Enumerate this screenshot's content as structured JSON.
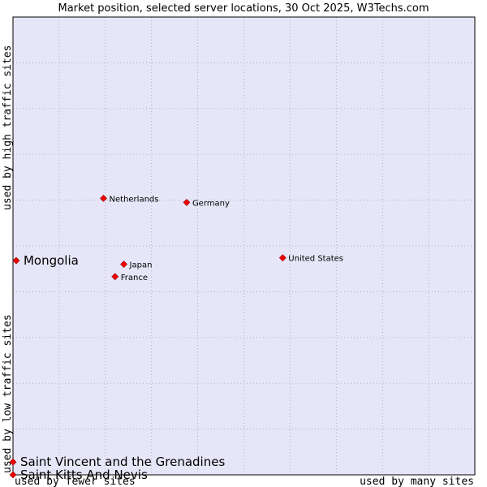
{
  "chart_data": {
    "type": "scatter",
    "title": "Market position, selected server locations, 30 Oct 2025, W3Techs.com",
    "xlabel_left": "used by fewer sites",
    "xlabel_right": "used by many sites",
    "ylabel_top": "used by high traffic sites",
    "ylabel_bottom": "used by low traffic sites",
    "xlim": [
      0,
      100
    ],
    "ylim": [
      0,
      100
    ],
    "grid": true,
    "colors": {
      "plot_bg": "#e6e6f8",
      "grid": "#9a9aa8",
      "point": "#ee0000",
      "point_stroke": "#990000",
      "border": "#000000"
    },
    "points": [
      {
        "name": "Netherlands",
        "x": 19.6,
        "y": 60.4,
        "highlight": false
      },
      {
        "name": "Germany",
        "x": 37.6,
        "y": 59.5,
        "highlight": false
      },
      {
        "name": "United States",
        "x": 58.4,
        "y": 47.4,
        "highlight": false
      },
      {
        "name": "Japan",
        "x": 24.0,
        "y": 46.0,
        "highlight": false
      },
      {
        "name": "France",
        "x": 22.1,
        "y": 43.3,
        "highlight": false
      },
      {
        "name": "Mongolia",
        "x": 0.7,
        "y": 46.8,
        "highlight": true
      },
      {
        "name": "Saint Vincent and the Grenadines",
        "x": 0.0,
        "y": 2.8,
        "highlight": true
      },
      {
        "name": "Saint Kitts And Nevis",
        "x": 0.0,
        "y": 0.0,
        "highlight": true
      }
    ]
  }
}
